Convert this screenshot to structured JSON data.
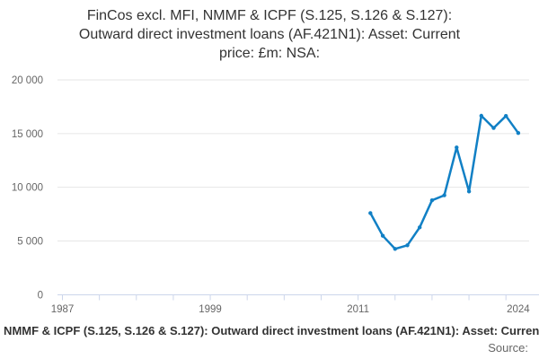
{
  "title": {
    "lines": [
      "FinCos excl. MFI, NMMF & ICPF (S.125, S.126 & S.127):",
      "Outward direct investment loans (AF.421N1): Asset: Current",
      "price: £m: NSA:"
    ]
  },
  "footer": {
    "series_text": "FinCos excl. MFI, NMMF & ICPF (S.125, S.126 & S.127): Outward direct investment loans (AF.421N1): Asset: Current price: £m: NSA:",
    "source_label": "Source:"
  },
  "colors": {
    "line": "#1180c5",
    "grid": "#e6e6e6",
    "axis": "#ccd6eb",
    "tick_label": "#666666",
    "title_text": "#333333"
  },
  "chart_data": {
    "type": "line",
    "title": "FinCos excl. MFI, NMMF & ICPF (S.125, S.126 & S.127): Outward direct investment loans (AF.421N1): Asset: Current price: £m: NSA:",
    "xlabel": "",
    "ylabel": "",
    "grid": true,
    "legend": "none",
    "xlim": [
      1986.6,
      2025.1
    ],
    "ylim": [
      0,
      20000
    ],
    "x": [
      2012,
      2013,
      2014,
      2015,
      2016,
      2017,
      2018,
      2019,
      2020,
      2021,
      2022,
      2023,
      2024
    ],
    "values": [
      7600,
      5480,
      4260,
      4600,
      6270,
      8780,
      9250,
      13710,
      9610,
      16660,
      15520,
      16640,
      15050
    ],
    "x_ticks": {
      "minor_step": 3,
      "minor_start": 1987,
      "labeled": [
        {
          "year": 1987,
          "label": "1987"
        },
        {
          "year": 1999,
          "label": "1999"
        },
        {
          "year": 2011,
          "label": "2011"
        },
        {
          "year": 2024,
          "label": "2024"
        }
      ]
    },
    "y_ticks": [
      {
        "value": 0,
        "label": "0"
      },
      {
        "value": 5000,
        "label": "5 000"
      },
      {
        "value": 10000,
        "label": "10 000"
      },
      {
        "value": 15000,
        "label": "15 000"
      },
      {
        "value": 20000,
        "label": "20 000"
      }
    ]
  }
}
